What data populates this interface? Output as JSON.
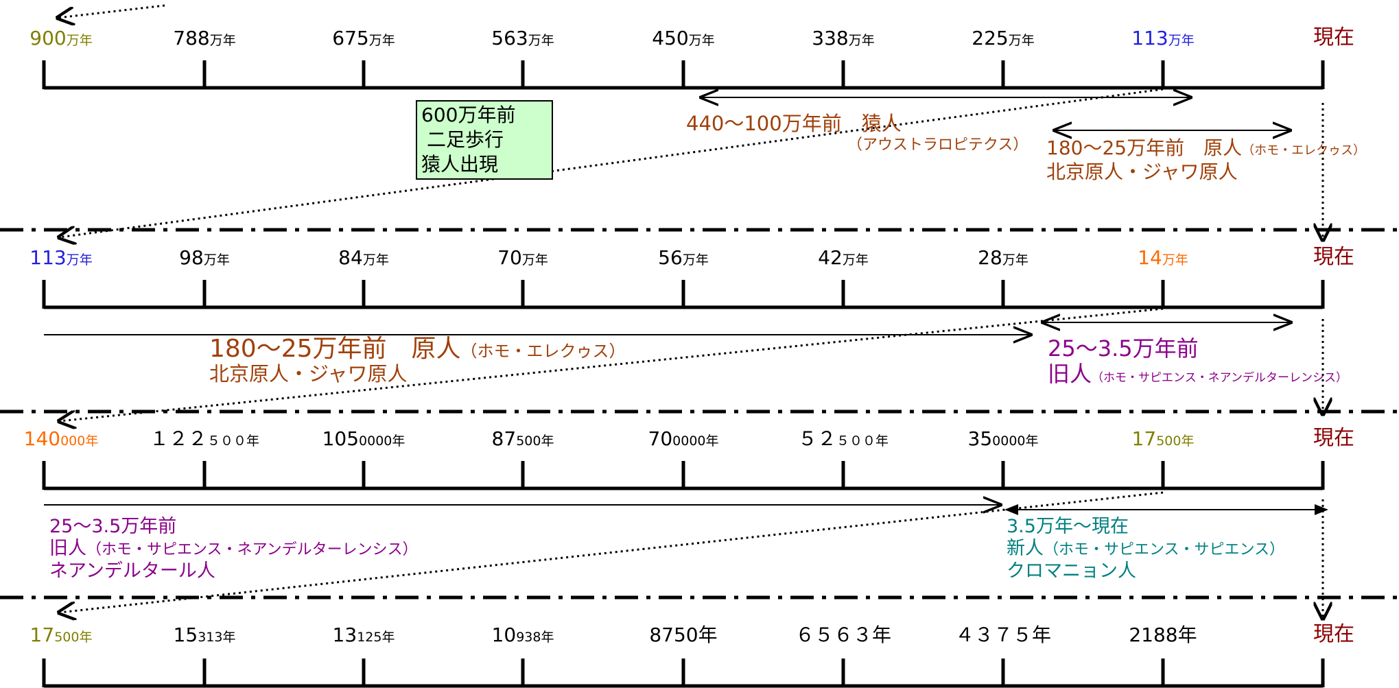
{
  "colors": {
    "olive": "#7f7f00",
    "blue": "#1f1fe0",
    "orange": "#ff6a00",
    "darkred": "#8b0000",
    "brown": "#a0400a",
    "purple": "#8b008b",
    "teal": "#008080",
    "green_box": "#ccffcc"
  },
  "timelines": [
    {
      "ticks": [
        {
          "big": "900",
          "small": "万年",
          "color": "#7f7f00"
        },
        {
          "big": "788",
          "small": "万年"
        },
        {
          "big": "675",
          "small": "万年"
        },
        {
          "big": "563",
          "small": "万年"
        },
        {
          "big": "450",
          "small": "万年"
        },
        {
          "big": "338",
          "small": "万年"
        },
        {
          "big": "225",
          "small": "万年"
        },
        {
          "big": "113",
          "small": "万年",
          "color": "#1f1fe0"
        }
      ],
      "now": "現在"
    },
    {
      "ticks": [
        {
          "big": "113",
          "small": "万年",
          "color": "#1f1fe0"
        },
        {
          "big": "98",
          "small": "万年"
        },
        {
          "big": "84",
          "small": "万年"
        },
        {
          "big": "70",
          "small": "万年"
        },
        {
          "big": "56",
          "small": "万年"
        },
        {
          "big": "42",
          "small": "万年"
        },
        {
          "big": "28",
          "small": "万年"
        },
        {
          "big": "14",
          "small": "万年",
          "color": "#ff6a00"
        }
      ],
      "now": "現在"
    },
    {
      "ticks": [
        {
          "big": "140",
          "small": "000年",
          "color": "#ff6a00"
        },
        {
          "big": "１２２",
          "small": "５００年"
        },
        {
          "big": "105",
          "small": "0000年"
        },
        {
          "big": "87",
          "small": "500年"
        },
        {
          "big": "70",
          "small": "0000年"
        },
        {
          "big": "５２",
          "small": "５００年"
        },
        {
          "big": "35",
          "small": "0000年"
        },
        {
          "big": "17",
          "small": "500年",
          "color": "#7f7f00"
        }
      ],
      "now": "現在"
    },
    {
      "ticks": [
        {
          "big": "17",
          "small": "500年",
          "color": "#7f7f00"
        },
        {
          "big": "15",
          "small": "313年"
        },
        {
          "big": "13",
          "small": "125年"
        },
        {
          "big": "10",
          "small": "938年"
        },
        {
          "big": "8750年",
          "small": ""
        },
        {
          "big": "６５６３年",
          "small": ""
        },
        {
          "big": "４３７５年",
          "small": ""
        },
        {
          "big": "2188年",
          "small": ""
        }
      ],
      "now": "現在"
    }
  ],
  "box": {
    "lines": [
      "600万年前",
      "二足歩行",
      "猿人出現"
    ]
  },
  "notes": {
    "sarujin": {
      "line1": "440～100万年前　猿人",
      "line2": "（アウストラロピテクス）"
    },
    "genjin_1": {
      "line1a": "180～25万年前　原人",
      "line1b": "（ホモ・エレクゥス）",
      "line2": "北京原人・ジャワ原人"
    },
    "genjin_2": {
      "line1a": "180～25万年前　原人",
      "line1b": "（ホモ・エレクゥス）",
      "line2": "北京原人・ジャワ原人"
    },
    "kyujin_1": {
      "line1": "25～3.5万年前",
      "line2a": "旧人",
      "line2b": "（ホモ・サピエンス・ネアンデルターレンシス）"
    },
    "kyujin_2": {
      "line1": "25～3.5万年前",
      "line2a": "旧人",
      "line2b": "（ホモ・サピエンス・ネアンデルターレンシス）",
      "line3": "ネアンデルタール人"
    },
    "shinjin": {
      "line1": "3.5万年～現在",
      "line2a": "新人",
      "line2b": "（ホモ・サピエンス・サピエンス）",
      "line3": "クロマニョン人"
    }
  }
}
